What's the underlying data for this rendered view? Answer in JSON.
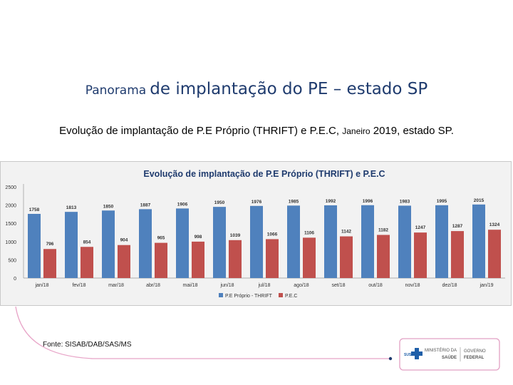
{
  "slide": {
    "title_part1": "Panorama",
    "title_part2": "de implantação do PE – estado SP",
    "subtitle_part1": "Evolução de implantação de P.E Próprio (THRIFT) e P.E.C,",
    "subtitle_month": "Janeiro",
    "subtitle_part2": "2019, estado SP.",
    "source": "Fonte: SISAB/DAB/SAS/MS"
  },
  "logo": {
    "sus": "SUS",
    "ministry_line1": "MINISTÉRIO DA",
    "ministry_line2": "SAÚDE",
    "gov_line1": "GOVERNO",
    "gov_line2": "FEDERAL"
  },
  "colors": {
    "title": "#1f3b6e",
    "series1": "#4f81bd",
    "series2": "#c0504d",
    "chart_title": "#1f3b6e"
  },
  "chart_data": {
    "type": "bar",
    "title": "Evolução de implantação de P.E Próprio (THRIFT) e P.E.C",
    "categories": [
      "jan/18",
      "fev/18",
      "mar/18",
      "abr/18",
      "mai/18",
      "jun/18",
      "jul/18",
      "ago/18",
      "set/18",
      "out/18",
      "nov/18",
      "dez/18",
      "jan/19"
    ],
    "series": [
      {
        "name": "P.E Próprio - THRIFT",
        "values": [
          1758,
          1813,
          1850,
          1887,
          1906,
          1950,
          1976,
          1985,
          1992,
          1996,
          1983,
          1995,
          2015
        ]
      },
      {
        "name": "P.E.C",
        "values": [
          796,
          854,
          904,
          965,
          998,
          1039,
          1066,
          1106,
          1142,
          1182,
          1247,
          1287,
          1324
        ]
      }
    ],
    "ylim": [
      0,
      2500
    ],
    "yticks": [
      0,
      500,
      1000,
      1500,
      2000,
      2500
    ],
    "grid": false,
    "legend": "bottom-center"
  }
}
